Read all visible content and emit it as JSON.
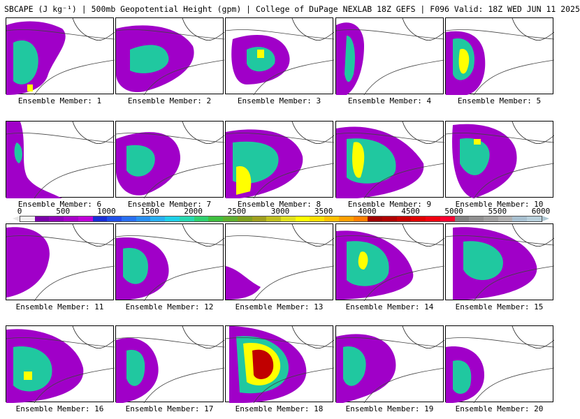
{
  "header": {
    "title": "SBCAPE (J kg⁻¹) | 500mb Geopotential Height (gpm) | College of DuPage NEXLAB 18Z GEFS | F096 Valid: 18Z WED JUN 11 2025"
  },
  "colorbar": {
    "ticks": [
      "0",
      "500",
      "1000",
      "1500",
      "2000",
      "2500",
      "3000",
      "3500",
      "4000",
      "4500",
      "5000",
      "5500",
      "6000"
    ],
    "colors": [
      "#f2f2f2",
      "#7a00a8",
      "#8f00b8",
      "#a800c8",
      "#c000d8",
      "#1a2fd6",
      "#2050e8",
      "#2a70f0",
      "#2a90f0",
      "#2ab0f0",
      "#20d0e8",
      "#28d8b0",
      "#30d070",
      "#40c040",
      "#60b030",
      "#80a020",
      "#a0a020",
      "#c0c020",
      "#e0e020",
      "#ffff00",
      "#ffe000",
      "#ffc000",
      "#ffa000",
      "#ff8000",
      "#a00000",
      "#b00000",
      "#c80000",
      "#e00000",
      "#f00010",
      "#ff0030",
      "#808080",
      "#909090",
      "#a0a0a0",
      "#b0b0b0",
      "#a8c0d0",
      "#b8d0dc"
    ]
  },
  "members": [
    {
      "label": "Ensemble Member: 1"
    },
    {
      "label": "Ensemble Member: 2"
    },
    {
      "label": "Ensemble Member: 3"
    },
    {
      "label": "Ensemble Member: 4"
    },
    {
      "label": "Ensemble Member: 5"
    },
    {
      "label": "Ensemble Member: 6"
    },
    {
      "label": "Ensemble Member: 7"
    },
    {
      "label": "Ensemble Member: 8"
    },
    {
      "label": "Ensemble Member: 9"
    },
    {
      "label": "Ensemble Member: 10"
    },
    {
      "label": "Ensemble Member: 11"
    },
    {
      "label": "Ensemble Member: 12"
    },
    {
      "label": "Ensemble Member: 13"
    },
    {
      "label": "Ensemble Member: 14"
    },
    {
      "label": "Ensemble Member: 15"
    },
    {
      "label": "Ensemble Member: 16"
    },
    {
      "label": "Ensemble Member: 17"
    },
    {
      "label": "Ensemble Member: 18"
    },
    {
      "label": "Ensemble Member: 19"
    },
    {
      "label": "Ensemble Member: 20"
    }
  ]
}
